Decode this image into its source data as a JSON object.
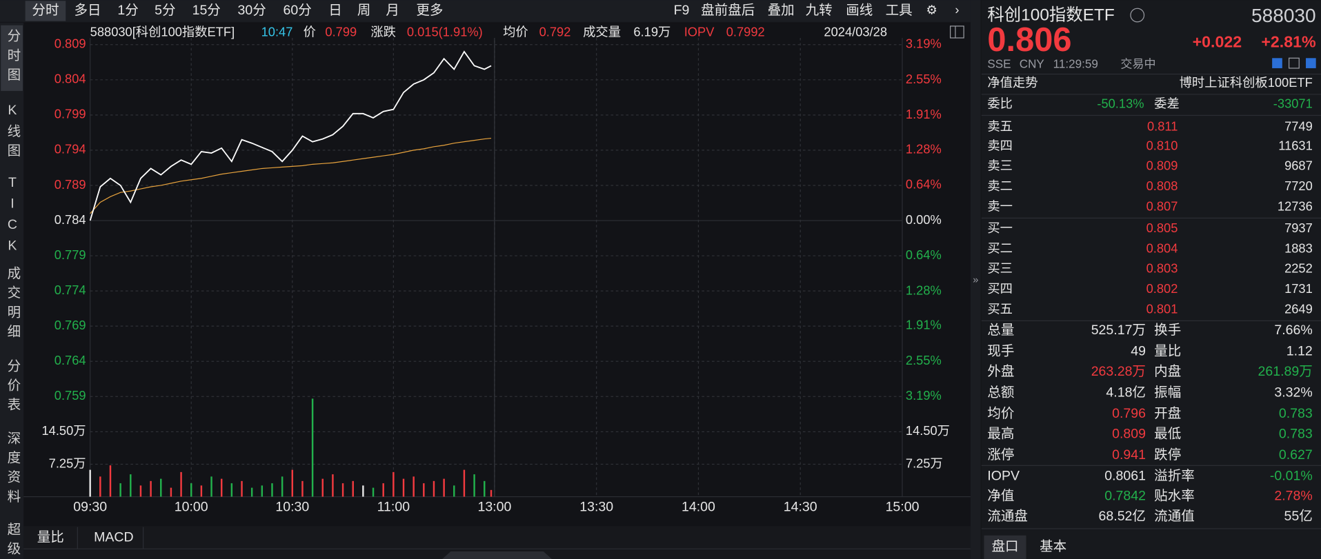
{
  "toolbar": {
    "periods": [
      "分时",
      "多日",
      "1分",
      "5分",
      "15分",
      "30分",
      "60分",
      "日",
      "周",
      "月",
      "更多"
    ],
    "tools": [
      "F9",
      "盘前盘后",
      "叠加",
      "九转",
      "画线",
      "工具"
    ]
  },
  "sidebar": [
    "分时图",
    "K线图",
    "TICK",
    "成交明细",
    "分价表",
    "深度资料",
    "超级"
  ],
  "header": {
    "code_name": "588030[科创100指数ETF]",
    "time": "10:47",
    "price_label": "价",
    "price": "0.799",
    "change_label": "涨跌",
    "change": "0.015(1.91%)",
    "avg_label": "均价",
    "avg": "0.792",
    "volume_label": "成交量",
    "volume": "6.19万",
    "iopv_label": "IOPV",
    "iopv": "0.7992",
    "date": "2024/03/28"
  },
  "chart_data": {
    "type": "line",
    "x": [
      "09:30",
      "09:33",
      "09:36",
      "09:39",
      "09:42",
      "09:45",
      "09:48",
      "09:51",
      "09:54",
      "09:57",
      "10:00",
      "10:03",
      "10:06",
      "10:09",
      "10:12",
      "10:15",
      "10:18",
      "10:21",
      "10:24",
      "10:27",
      "10:30",
      "10:33",
      "10:36",
      "10:39",
      "10:42",
      "10:45",
      "10:48",
      "10:51",
      "10:54",
      "10:57",
      "11:00",
      "11:03",
      "11:06",
      "11:09",
      "11:12",
      "11:15",
      "11:18",
      "11:21",
      "11:24",
      "11:27",
      "11:29"
    ],
    "series": [
      {
        "color": "#ffffff",
        "values": [
          0.784,
          0.7888,
          0.79,
          0.789,
          0.7866,
          0.79,
          0.7914,
          0.7905,
          0.7917,
          0.7926,
          0.792,
          0.7938,
          0.7936,
          0.7943,
          0.7924,
          0.7955,
          0.795,
          0.7944,
          0.7938,
          0.7924,
          0.794,
          0.796,
          0.7952,
          0.7956,
          0.7962,
          0.7974,
          0.7992,
          0.7992,
          0.7986,
          0.7995,
          0.7998,
          0.8022,
          0.8034,
          0.804,
          0.805,
          0.807,
          0.8055,
          0.808,
          0.806,
          0.8055,
          0.806
        ]
      },
      {
        "color": "#e8a33d",
        "values": [
          0.785,
          0.7866,
          0.7874,
          0.788,
          0.7882,
          0.7885,
          0.7888,
          0.789,
          0.7893,
          0.7896,
          0.7898,
          0.79,
          0.7903,
          0.7906,
          0.7908,
          0.791,
          0.7912,
          0.7914,
          0.7915,
          0.7916,
          0.7917,
          0.7918,
          0.792,
          0.7921,
          0.7922,
          0.7924,
          0.7926,
          0.7928,
          0.793,
          0.7932,
          0.7934,
          0.7937,
          0.794,
          0.7942,
          0.7945,
          0.7947,
          0.795,
          0.7952,
          0.7954,
          0.7956,
          0.7957
        ]
      }
    ],
    "ylim": [
      0.759,
      0.809
    ],
    "yticks": [
      0.809,
      0.804,
      0.799,
      0.794,
      0.789,
      0.784,
      0.779,
      0.774,
      0.769,
      0.764,
      0.759
    ],
    "y2lim": [
      -3.19,
      3.19
    ],
    "y2ticks": [
      {
        "value": 3.19,
        "label": "3.19%"
      },
      {
        "value": 2.55,
        "label": "2.55%"
      },
      {
        "value": 1.91,
        "label": "1.91%"
      },
      {
        "value": 1.28,
        "label": "1.28%"
      },
      {
        "value": 0.64,
        "label": "0.64%"
      },
      {
        "value": 0,
        "label": "0.00%"
      },
      {
        "value": -0.64,
        "label": "0.64%"
      },
      {
        "value": -1.28,
        "label": "1.28%"
      },
      {
        "value": -1.91,
        "label": "1.91%"
      },
      {
        "value": -2.55,
        "label": "2.55%"
      },
      {
        "value": -3.19,
        "label": "3.19%"
      }
    ],
    "xticks": [
      "09:30",
      "10:00",
      "10:30",
      "11:00",
      "13:00",
      "13:30",
      "14:00",
      "14:30",
      "15:00"
    ],
    "grid": true,
    "volume": {
      "ylim": [
        0,
        220000
      ],
      "yticks": [
        {
          "value": 145000,
          "label": "14.50万"
        },
        {
          "value": 72500,
          "label": "7.25万"
        }
      ],
      "values": [
        60000,
        45000,
        70000,
        30000,
        50000,
        25000,
        35000,
        40000,
        20000,
        55000,
        30000,
        25000,
        45000,
        40000,
        30000,
        35000,
        20000,
        25000,
        30000,
        45000,
        60000,
        35000,
        219000,
        40000,
        50000,
        30000,
        35000,
        25000,
        20000,
        30000,
        55000,
        40000,
        45000,
        30000,
        35000,
        40000,
        25000,
        60000,
        50000,
        35000,
        15000
      ]
    }
  },
  "indicator_tabs": [
    "量比",
    "MACD"
  ],
  "quote": {
    "name": "科创100指数ETF",
    "code": "588030",
    "price": "0.806",
    "change": "+0.022",
    "change_pct": "+2.81%",
    "market": "SSE",
    "currency": "CNY",
    "time": "11:29:59",
    "status": "交易中",
    "nav_label": "净值走势",
    "index_name": "博时上证科创板100ETF",
    "ratio": [
      {
        "label": "委比",
        "value": "-50.13%"
      },
      {
        "label": "委差",
        "value": "-33071"
      }
    ],
    "sell": [
      {
        "label": "卖五",
        "price": "0.811",
        "volume": "7749"
      },
      {
        "label": "卖四",
        "price": "0.810",
        "volume": "11631"
      },
      {
        "label": "卖三",
        "price": "0.809",
        "volume": "9687"
      },
      {
        "label": "卖二",
        "price": "0.808",
        "volume": "7720"
      },
      {
        "label": "卖一",
        "price": "0.807",
        "volume": "12736"
      }
    ],
    "buy": [
      {
        "label": "买一",
        "price": "0.805",
        "volume": "7937"
      },
      {
        "label": "买二",
        "price": "0.804",
        "volume": "1883"
      },
      {
        "label": "买三",
        "price": "0.803",
        "volume": "2252"
      },
      {
        "label": "买四",
        "price": "0.802",
        "volume": "1731"
      },
      {
        "label": "买五",
        "price": "0.801",
        "volume": "2649"
      }
    ],
    "stats": [
      [
        {
          "label": "总量",
          "value": "525.17万"
        },
        {
          "label": "换手",
          "value": "7.66%"
        }
      ],
      [
        {
          "label": "现手",
          "value": "49"
        },
        {
          "label": "量比",
          "value": "1.12"
        }
      ],
      [
        {
          "label": "外盘",
          "value": "263.28万"
        },
        {
          "label": "内盘",
          "value": "261.89万"
        }
      ],
      [
        {
          "label": "总额",
          "value": "4.18亿"
        },
        {
          "label": "振幅",
          "value": "3.32%"
        }
      ],
      [
        {
          "label": "均价",
          "value": "0.796"
        },
        {
          "label": "开盘",
          "value": "0.783"
        }
      ],
      [
        {
          "label": "最高",
          "value": "0.809"
        },
        {
          "label": "最低",
          "value": "0.783"
        }
      ],
      [
        {
          "label": "涨停",
          "value": "0.941"
        },
        {
          "label": "跌停",
          "value": "0.627"
        }
      ],
      [
        {
          "label": "IOPV",
          "value": "0.8061"
        },
        {
          "label": "溢折率",
          "value": "-0.01%"
        }
      ],
      [
        {
          "label": "净值",
          "value": "0.7842"
        },
        {
          "label": "贴水率",
          "value": "2.78%"
        }
      ],
      [
        {
          "label": "流通盘",
          "value": "68.52亿"
        },
        {
          "label": "流通值",
          "value": "55亿"
        }
      ]
    ],
    "tabs": [
      "盘口",
      "基本"
    ]
  }
}
